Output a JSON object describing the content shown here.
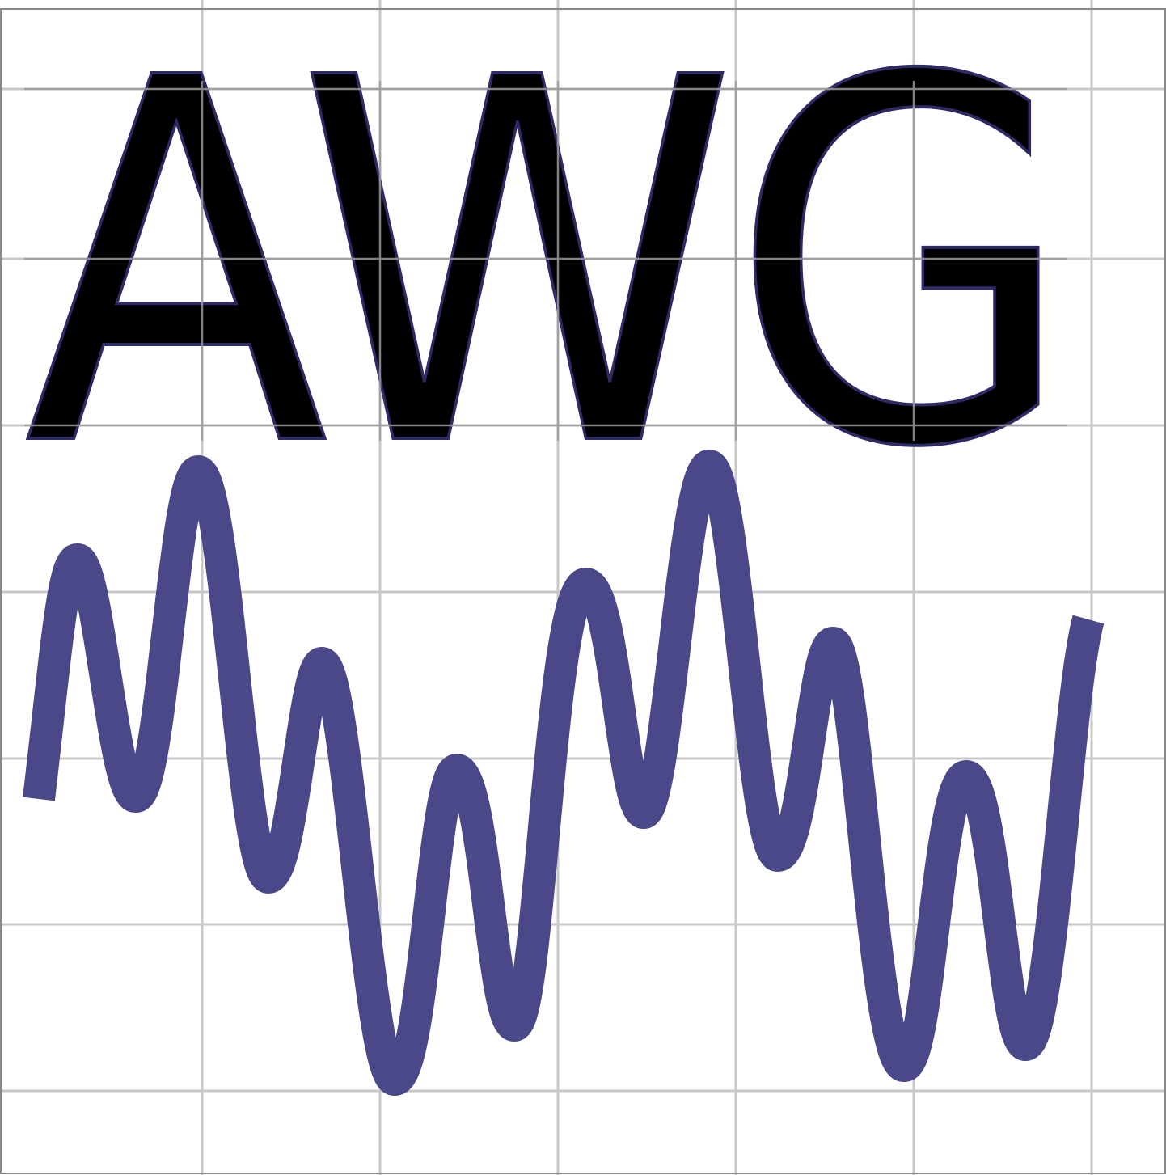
{
  "logo": {
    "text": "AWG",
    "text_color": "#000000",
    "text_outline_color": "#2e2a66",
    "grid_color": "#c8c8c8",
    "border_color": "#888888",
    "waveform_color": "#4a4888",
    "background_color": "#ffffff"
  }
}
